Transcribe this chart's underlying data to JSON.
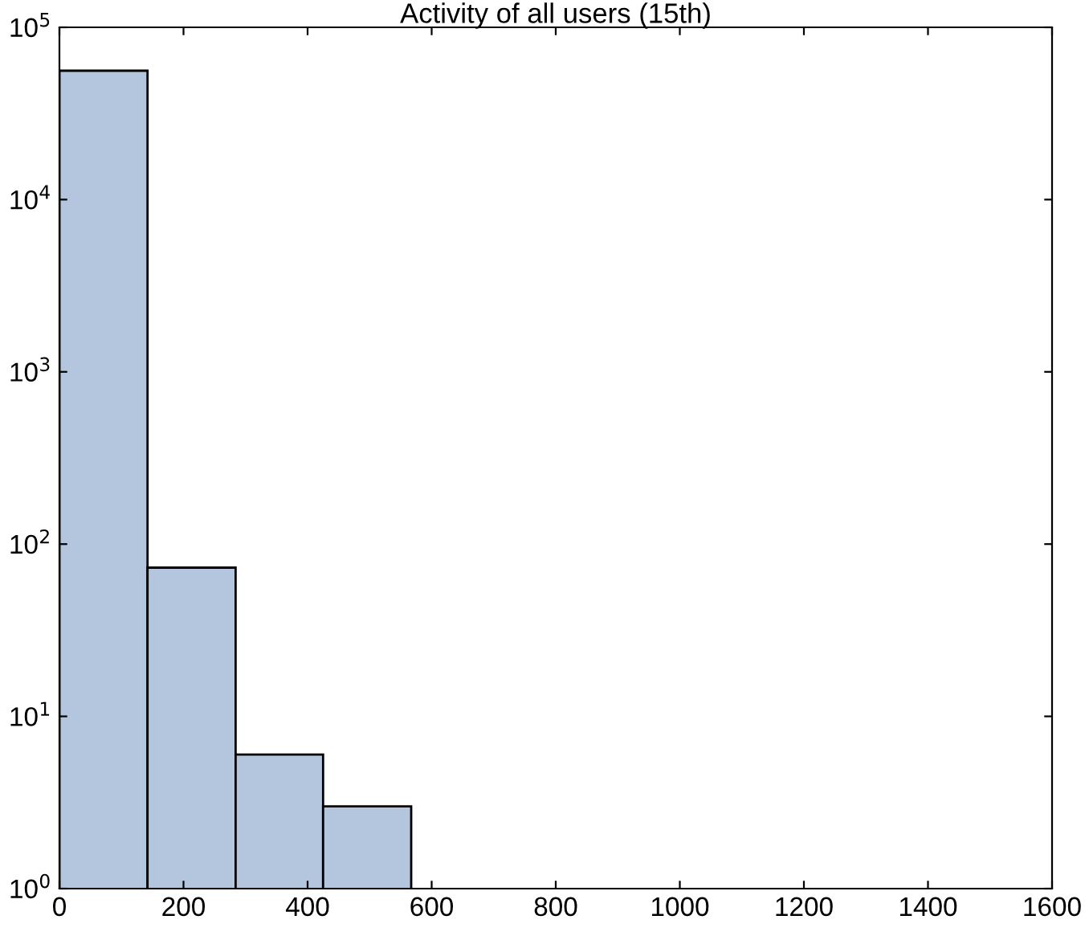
{
  "chart_data": {
    "type": "histogram",
    "title": "Activity of all users (15th)",
    "bins": [
      0,
      142,
      284,
      425,
      567
    ],
    "values": [
      56000,
      73,
      6,
      3
    ],
    "color": "#b4c5de",
    "log": "y",
    "grid": false,
    "xlim": [
      0,
      1600
    ],
    "xticks": [
      0,
      200,
      400,
      600,
      800,
      1000,
      1200,
      1400,
      1600
    ],
    "ylim": [
      1,
      100000
    ],
    "yticks": [
      {
        "value": 1,
        "label": "10$^{0}$"
      },
      {
        "value": 10,
        "label": "10$^{1}$"
      },
      {
        "value": 100,
        "label": "10$^{2}$"
      },
      {
        "value": 1000,
        "label": "10$^{3}$"
      },
      {
        "value": 10000,
        "label": "10$^{4}$"
      },
      {
        "value": 100000,
        "label": "10$^{5}$"
      }
    ]
  }
}
